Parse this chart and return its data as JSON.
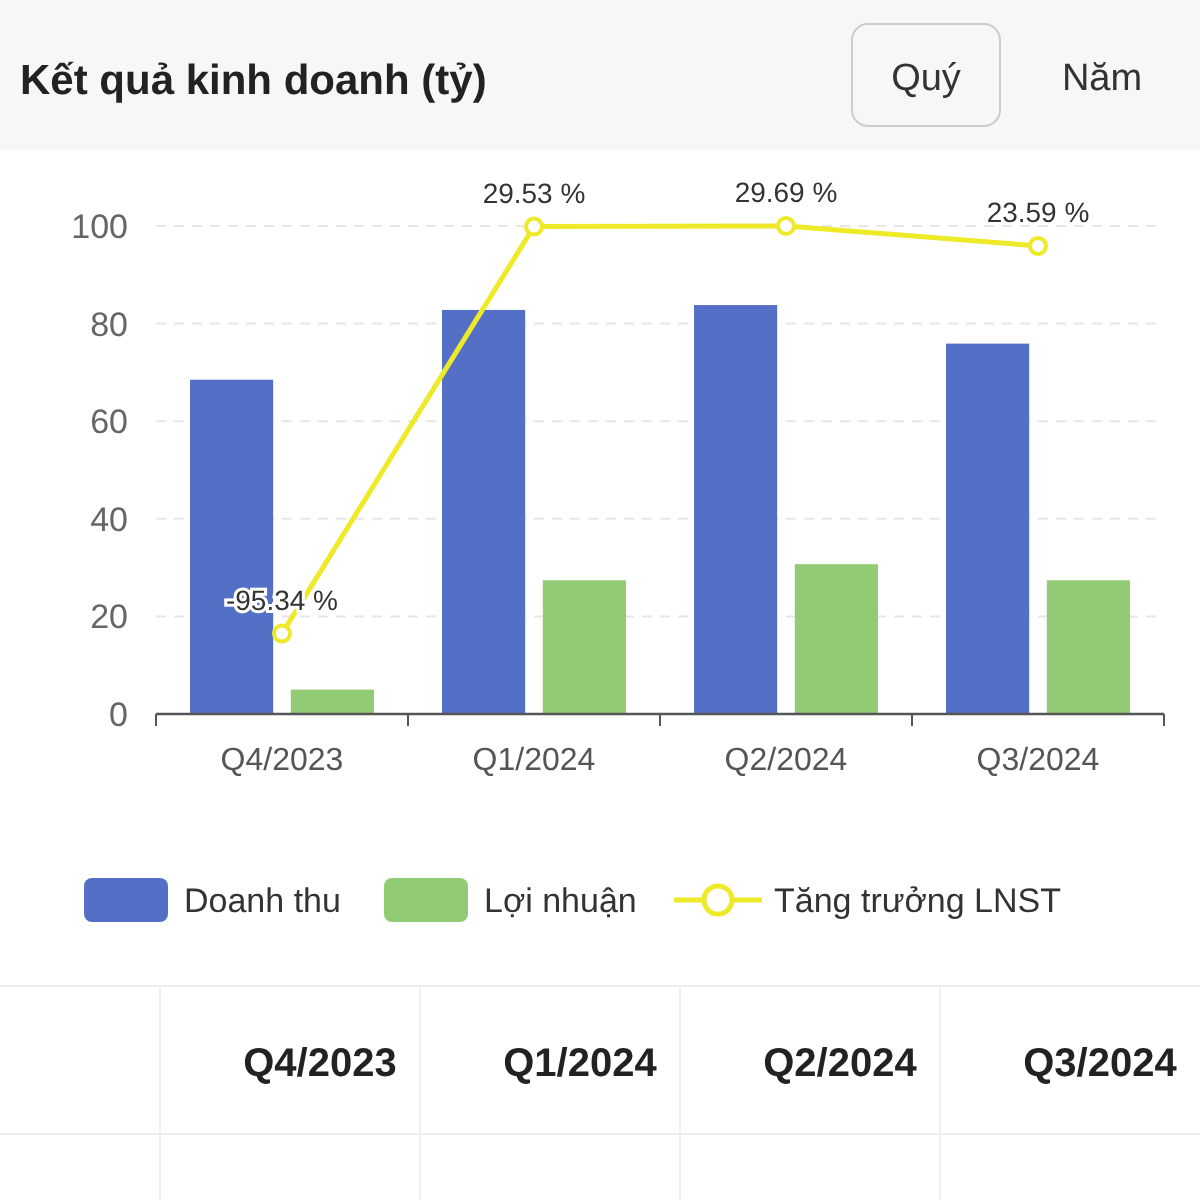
{
  "chart_data": {
    "type": "bar",
    "title": "Kết quả kinh doanh (tỷ)",
    "annotations": [
      "Quý",
      "Năm"
    ],
    "categories": [
      "Q4/2023",
      "Q1/2024",
      "Q2/2024",
      "Q3/2024"
    ],
    "series": [
      {
        "name": "Doanh thu",
        "color": "#5470c6",
        "values": [
          68.5,
          82.8,
          83.8,
          75.9
        ]
      },
      {
        "name": "Lợi nhuận",
        "color": "#91cc75",
        "values": [
          5.0,
          27.4,
          30.7,
          27.4
        ]
      },
      {
        "name": "Tăng trưởng LNST",
        "type": "line",
        "axis": "y2",
        "color": "#eeea2a",
        "marker": "circle",
        "values": [
          -95.34,
          29.53,
          29.69,
          23.59
        ],
        "value_labels": [
          "-95.34 %",
          "29.53 %",
          "29.69 %",
          "23.59 %"
        ]
      }
    ],
    "ylim": [
      0,
      100
    ],
    "yticks": [
      0,
      20,
      40,
      60,
      80,
      100
    ],
    "y2lim": [
      -120,
      29.7
    ],
    "tick_labels": [
      "x",
      "y"
    ],
    "grid": "y",
    "legend": "bottom"
  }
}
